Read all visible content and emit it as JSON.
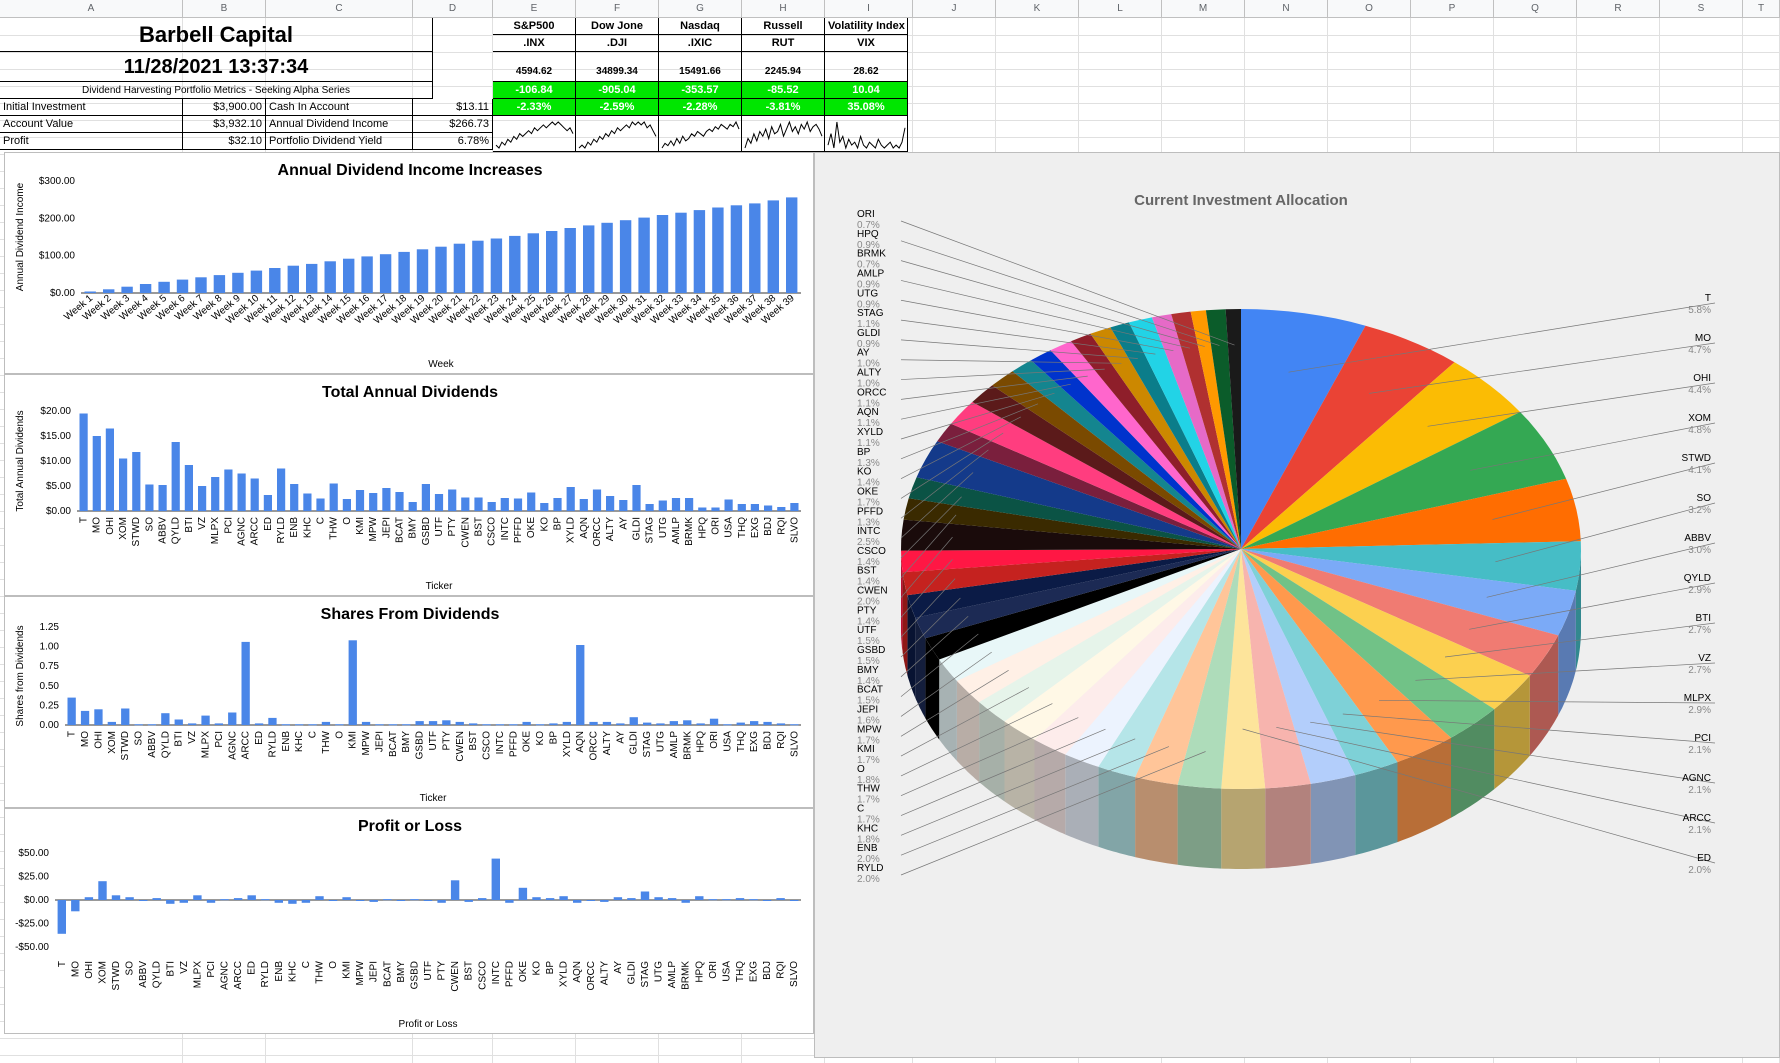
{
  "columns": [
    "A",
    "B",
    "C",
    "D",
    "E",
    "F",
    "G",
    "H",
    "I",
    "J",
    "K",
    "L",
    "M",
    "N",
    "O",
    "P",
    "Q",
    "R",
    "S",
    "T"
  ],
  "header": {
    "company": "Barbell Capital",
    "timestamp": "11/28/2021 13:37:34",
    "series_label": "Dividend Harvesting Portfolio Metrics - Seeking Alpha Series"
  },
  "indexes": [
    {
      "name": "S&P500",
      "symbol": ".INX",
      "price": "4594.62",
      "change": "-106.84",
      "pct": "-2.33%",
      "spark": [
        8,
        7,
        9,
        8,
        10,
        9,
        11,
        10,
        12,
        11,
        12,
        13,
        12,
        14,
        13,
        14,
        15,
        14,
        15,
        16,
        15,
        16,
        15,
        14,
        13,
        14,
        12
      ]
    },
    {
      "name": "Dow Jone",
      "symbol": ".DJI",
      "price": "34899.34",
      "change": "-905.04",
      "pct": "-2.59%",
      "spark": [
        7,
        8,
        7,
        9,
        8,
        10,
        9,
        11,
        10,
        12,
        11,
        13,
        12,
        14,
        13,
        14,
        15,
        14,
        16,
        15,
        16,
        15,
        16,
        14,
        15,
        13,
        11
      ]
    },
    {
      "name": "Nasdaq",
      "symbol": ".IXIC",
      "price": "15491.66",
      "change": "-353.57",
      "pct": "-2.28%",
      "spark": [
        6,
        8,
        7,
        9,
        7,
        10,
        8,
        11,
        9,
        10,
        12,
        11,
        13,
        12,
        11,
        13,
        14,
        13,
        15,
        14,
        16,
        15,
        14,
        16,
        15,
        17,
        14
      ]
    },
    {
      "name": "Russell",
      "symbol": "RUT",
      "price": "2245.94",
      "change": "-85.52",
      "pct": "-3.81%",
      "spark": [
        5,
        9,
        7,
        11,
        8,
        12,
        10,
        13,
        9,
        14,
        11,
        12,
        15,
        10,
        13,
        16,
        12,
        14,
        11,
        15,
        13,
        16,
        12,
        14,
        15,
        13,
        10
      ]
    },
    {
      "name": "Volatility Index",
      "symbol": "VIX",
      "price": "28.62",
      "change": "10.04",
      "pct": "35.08%",
      "spark": [
        6,
        10,
        5,
        14,
        7,
        9,
        5,
        8,
        6,
        7,
        5,
        9,
        6,
        5,
        7,
        6,
        5,
        8,
        6,
        5,
        6,
        7,
        5,
        6,
        5,
        7,
        12
      ]
    }
  ],
  "metrics": {
    "rows": [
      {
        "l1": "Initial Investment",
        "v1": "$3,900.00",
        "l2": "Cash In Account",
        "v2": "$13.11"
      },
      {
        "l1": "Account Value",
        "v1": "$3,932.10",
        "l2": "Annual Dividend Income",
        "v2": "$266.73"
      },
      {
        "l1": "Profit",
        "v1": "$32.10",
        "l2": "Portfolio Dividend Yield",
        "v2": "6.78%"
      }
    ]
  },
  "colors": {
    "bar": "#4a86e8",
    "green": "#00e600"
  },
  "chart_data": [
    {
      "type": "bar",
      "title": "Annual Dividend Income Increases",
      "xlabel": "Week",
      "ylabel": "Annual Dividend Income",
      "yticks": [
        "$0.00",
        "$100.00",
        "$200.00",
        "$300.00"
      ],
      "ylim": [
        0,
        300
      ],
      "categories": [
        "Week 1",
        "Week 2",
        "Week 3",
        "Week 4",
        "Week 5",
        "Week 6",
        "Week 7",
        "Week 8",
        "Week 9",
        "Week 10",
        "Week 11",
        "Week 12",
        "Week 13",
        "Week 14",
        "Week 15",
        "Week 16",
        "Week 17",
        "Week 18",
        "Week 19",
        "Week 20",
        "Week 21",
        "Week 22",
        "Week 23",
        "Week 24",
        "Week 25",
        "Week 26",
        "Week 27",
        "Week 28",
        "Week 29",
        "Week 30",
        "Week 31",
        "Week 32",
        "Week 33",
        "Week 34",
        "Week 35",
        "Week 36",
        "Week 37",
        "Week 38",
        "Week 39"
      ],
      "values": [
        4,
        10,
        17,
        24,
        30,
        36,
        42,
        48,
        54,
        60,
        67,
        73,
        78,
        85,
        92,
        98,
        104,
        110,
        117,
        124,
        132,
        140,
        146,
        153,
        160,
        166,
        174,
        181,
        188,
        195,
        202,
        209,
        215,
        222,
        229,
        235,
        240,
        248,
        256
      ]
    },
    {
      "type": "bar",
      "title": "Total Annual Dividends",
      "xlabel": "Ticker",
      "ylabel": "Total Annual Dividends",
      "yticks": [
        "$0.00",
        "$5.00",
        "$10.00",
        "$15.00",
        "$20.00"
      ],
      "ylim": [
        0,
        20
      ],
      "categories": [
        "T",
        "MO",
        "OHI",
        "XOM",
        "STWD",
        "SO",
        "ABBV",
        "QYLD",
        "BTI",
        "VZ",
        "MLPX",
        "PCI",
        "AGNC",
        "ARCC",
        "ED",
        "RYLD",
        "ENB",
        "KHC",
        "C",
        "THW",
        "O",
        "KMI",
        "MPW",
        "JEPI",
        "BCAT",
        "BMY",
        "GSBD",
        "UTF",
        "PTY",
        "CWEN",
        "BST",
        "CSCO",
        "INTC",
        "PFFD",
        "OKE",
        "KO",
        "BP",
        "XYLD",
        "AQN",
        "ORCC",
        "ALTY",
        "AY",
        "GLDI",
        "STAG",
        "UTG",
        "AMLP",
        "BRMK",
        "HPQ",
        "ORI",
        "USA",
        "THQ",
        "EXG",
        "BDJ",
        "RQI",
        "SLVO"
      ],
      "values": [
        19.5,
        15,
        16.5,
        10.5,
        11.8,
        5.3,
        5.2,
        13.8,
        9.2,
        5,
        6.8,
        8.3,
        7.5,
        6.5,
        3.2,
        8.5,
        5.4,
        3.5,
        2.5,
        5.5,
        2.4,
        4.2,
        3.6,
        4.6,
        3.8,
        1.8,
        5.4,
        3.4,
        4.3,
        2.7,
        2.7,
        1.8,
        2.6,
        2.5,
        3.7,
        1.6,
        2.6,
        4.8,
        2.4,
        4.3,
        3,
        2.2,
        5.2,
        1.4,
        2.1,
        2.6,
        2.6,
        0.7,
        0.7,
        2.3,
        1.4,
        1.4,
        1.1,
        0.8,
        1.6
      ]
    },
    {
      "type": "bar",
      "title": "Shares From Dividends",
      "xlabel": "Ticker",
      "ylabel": "Shares from Dividends",
      "yticks": [
        "0.00",
        "0.25",
        "0.50",
        "0.75",
        "1.00",
        "1.25"
      ],
      "ylim": [
        0,
        1.25
      ],
      "categories": [
        "T",
        "MO",
        "OHI",
        "XOM",
        "STWD",
        "SO",
        "ABBV",
        "QYLD",
        "BTI",
        "VZ",
        "MLPX",
        "PCI",
        "AGNC",
        "ARCC",
        "ED",
        "RYLD",
        "ENB",
        "KHC",
        "C",
        "THW",
        "O",
        "KMI",
        "MPW",
        "JEPI",
        "BCAT",
        "BMY",
        "GSBD",
        "UTF",
        "PTY",
        "CWEN",
        "BST",
        "CSCO",
        "INTC",
        "PFFD",
        "OKE",
        "KO",
        "BP",
        "XYLD",
        "AQN",
        "ORCC",
        "ALTY",
        "AY",
        "GLDI",
        "STAG",
        "UTG",
        "AMLP",
        "BRMK",
        "HPQ",
        "ORI",
        "USA",
        "THQ",
        "EXG",
        "BDJ",
        "RQI",
        "SLVO"
      ],
      "values": [
        0.35,
        0.18,
        0.2,
        0.04,
        0.21,
        0.01,
        0.01,
        0.15,
        0.07,
        0.02,
        0.12,
        0.02,
        0.16,
        1.06,
        0.02,
        0.09,
        0.01,
        0.01,
        0.01,
        0.04,
        0.01,
        1.08,
        0.04,
        0.01,
        0.01,
        0.01,
        0.05,
        0.05,
        0.06,
        0.04,
        0.02,
        0.01,
        0.01,
        0.01,
        0.04,
        0.01,
        0.02,
        0.04,
        1.02,
        0.04,
        0.04,
        0.02,
        0.1,
        0.03,
        0.02,
        0.05,
        0.06,
        0.02,
        0.08,
        0.01,
        0.03,
        0.05,
        0.04,
        0.02,
        0.01
      ]
    },
    {
      "type": "bar",
      "title": "Profit or Loss",
      "xlabel": "Profit or Loss",
      "ylabel": "",
      "yticks": [
        "-$50.00",
        "-$25.00",
        "$0.00",
        "$25.00",
        "$50.00"
      ],
      "ylim": [
        -50,
        50
      ],
      "categories": [
        "T",
        "MO",
        "OHI",
        "XOM",
        "STWD",
        "SO",
        "ABBV",
        "QYLD",
        "BTI",
        "VZ",
        "MLPX",
        "PCI",
        "AGNC",
        "ARCC",
        "ED",
        "RYLD",
        "ENB",
        "KHC",
        "C",
        "THW",
        "O",
        "KMI",
        "MPW",
        "JEPI",
        "BCAT",
        "BMY",
        "GSBD",
        "UTF",
        "PTY",
        "CWEN",
        "BST",
        "CSCO",
        "INTC",
        "PFFD",
        "OKE",
        "KO",
        "BP",
        "XYLD",
        "AQN",
        "ORCC",
        "ALTY",
        "AY",
        "GLDI",
        "STAG",
        "UTG",
        "AMLP",
        "BRMK",
        "HPQ",
        "ORI",
        "USA",
        "THQ",
        "EXG",
        "BDJ",
        "RQI",
        "SLVO"
      ],
      "values": [
        -36,
        -12,
        3,
        20,
        5,
        3,
        -1,
        2,
        -4,
        -3,
        5,
        -3,
        1,
        2,
        5,
        1,
        -3,
        -4,
        -3,
        4,
        -1,
        3,
        -1,
        -2,
        1,
        -1,
        1,
        -1,
        -3,
        21,
        -2,
        2,
        44,
        -3,
        13,
        3,
        2,
        4,
        -3,
        -1,
        -2,
        3,
        2,
        9,
        3,
        2,
        -3,
        4,
        1,
        1,
        2,
        1,
        -1,
        2,
        -1
      ]
    },
    {
      "type": "pie",
      "title": "Current Investment Allocation",
      "categories": [
        "T",
        "MO",
        "OHI",
        "XOM",
        "STWD",
        "SO",
        "ABBV",
        "QYLD",
        "BTI",
        "VZ",
        "MLPX",
        "PCI",
        "AGNC",
        "ARCC",
        "ED",
        "RYLD",
        "ENB",
        "KHC",
        "C",
        "THW",
        "O",
        "KMI",
        "MPW",
        "JEPI",
        "BCAT",
        "BMY",
        "GSBD",
        "UTF",
        "PTY",
        "CWEN",
        "BST",
        "CSCO",
        "INTC",
        "PFFD",
        "OKE",
        "KO",
        "BP",
        "XYLD",
        "AQN",
        "ORCC",
        "ALTY",
        "AY",
        "GLDI",
        "STAG",
        "UTG",
        "AMLP",
        "BRMK",
        "HPQ",
        "ORI"
      ],
      "labels": [
        "5.8%",
        "4.7%",
        "4.4%",
        "4.8%",
        "4.1%",
        "3.2%",
        "3.0%",
        "2.9%",
        "2.7%",
        "2.7%",
        "2.9%",
        "2.1%",
        "2.1%",
        "2.1%",
        "2.0%",
        "2.0%",
        "2.0%",
        "1.8%",
        "1.7%",
        "1.7%",
        "1.8%",
        "1.7%",
        "1.7%",
        "1.6%",
        "1.5%",
        "1.4%",
        "1.5%",
        "1.5%",
        "1.4%",
        "2.0%",
        "1.4%",
        "1.4%",
        "2.5%",
        "1.3%",
        "1.7%",
        "1.4%",
        "1.3%",
        "1.1%",
        "1.1%",
        "1.1%",
        "1.0%",
        "1.0%",
        "0.9%",
        "1.1%",
        "0.9%",
        "0.9%",
        "0.7%",
        "0.9%",
        "0.7%"
      ],
      "values": [
        5.8,
        4.7,
        4.4,
        4.8,
        4.1,
        3.2,
        3.0,
        2.9,
        2.7,
        2.7,
        2.9,
        2.1,
        2.1,
        2.1,
        2.0,
        2.0,
        2.0,
        1.8,
        1.7,
        1.7,
        1.8,
        1.7,
        1.7,
        1.6,
        1.5,
        1.4,
        1.5,
        1.5,
        1.4,
        2.0,
        1.4,
        1.4,
        2.5,
        1.3,
        1.7,
        1.4,
        1.3,
        1.1,
        1.1,
        1.1,
        1.0,
        1.0,
        0.9,
        1.1,
        0.9,
        0.9,
        0.7,
        0.9,
        0.7
      ],
      "colors": [
        "#4285f4",
        "#ea4335",
        "#fbbc04",
        "#34a853",
        "#ff6d01",
        "#46bdc6",
        "#7baaf7",
        "#f07b72",
        "#fcd04f",
        "#71c287",
        "#ff994d",
        "#7ed1d7",
        "#b3cefb",
        "#f7b4ae",
        "#fde49b",
        "#aedcba",
        "#ffc599",
        "#b5e5e8",
        "#ecf3fe",
        "#fdeceb",
        "#fff8e6",
        "#e6f4ea",
        "#fff0e6",
        "#e8f7f8",
        "#000000",
        "#1c2a54",
        "#0b1b46",
        "#c5221f",
        "#ff1744",
        "#1a0b0b",
        "#3a2a00",
        "#0b5345",
        "#143a8a",
        "#7a1f3d",
        "#ff3d7f",
        "#5b1a1a",
        "#7a4a00",
        "#14858f",
        "#0033cc",
        "#ff66cc",
        "#8e1e2a",
        "#cc8800",
        "#0b7d8a",
        "#22d3e6",
        "#e66ac7",
        "#b03030",
        "#ff9900",
        "#0b5c2a",
        "#1a1a1a"
      ]
    }
  ]
}
